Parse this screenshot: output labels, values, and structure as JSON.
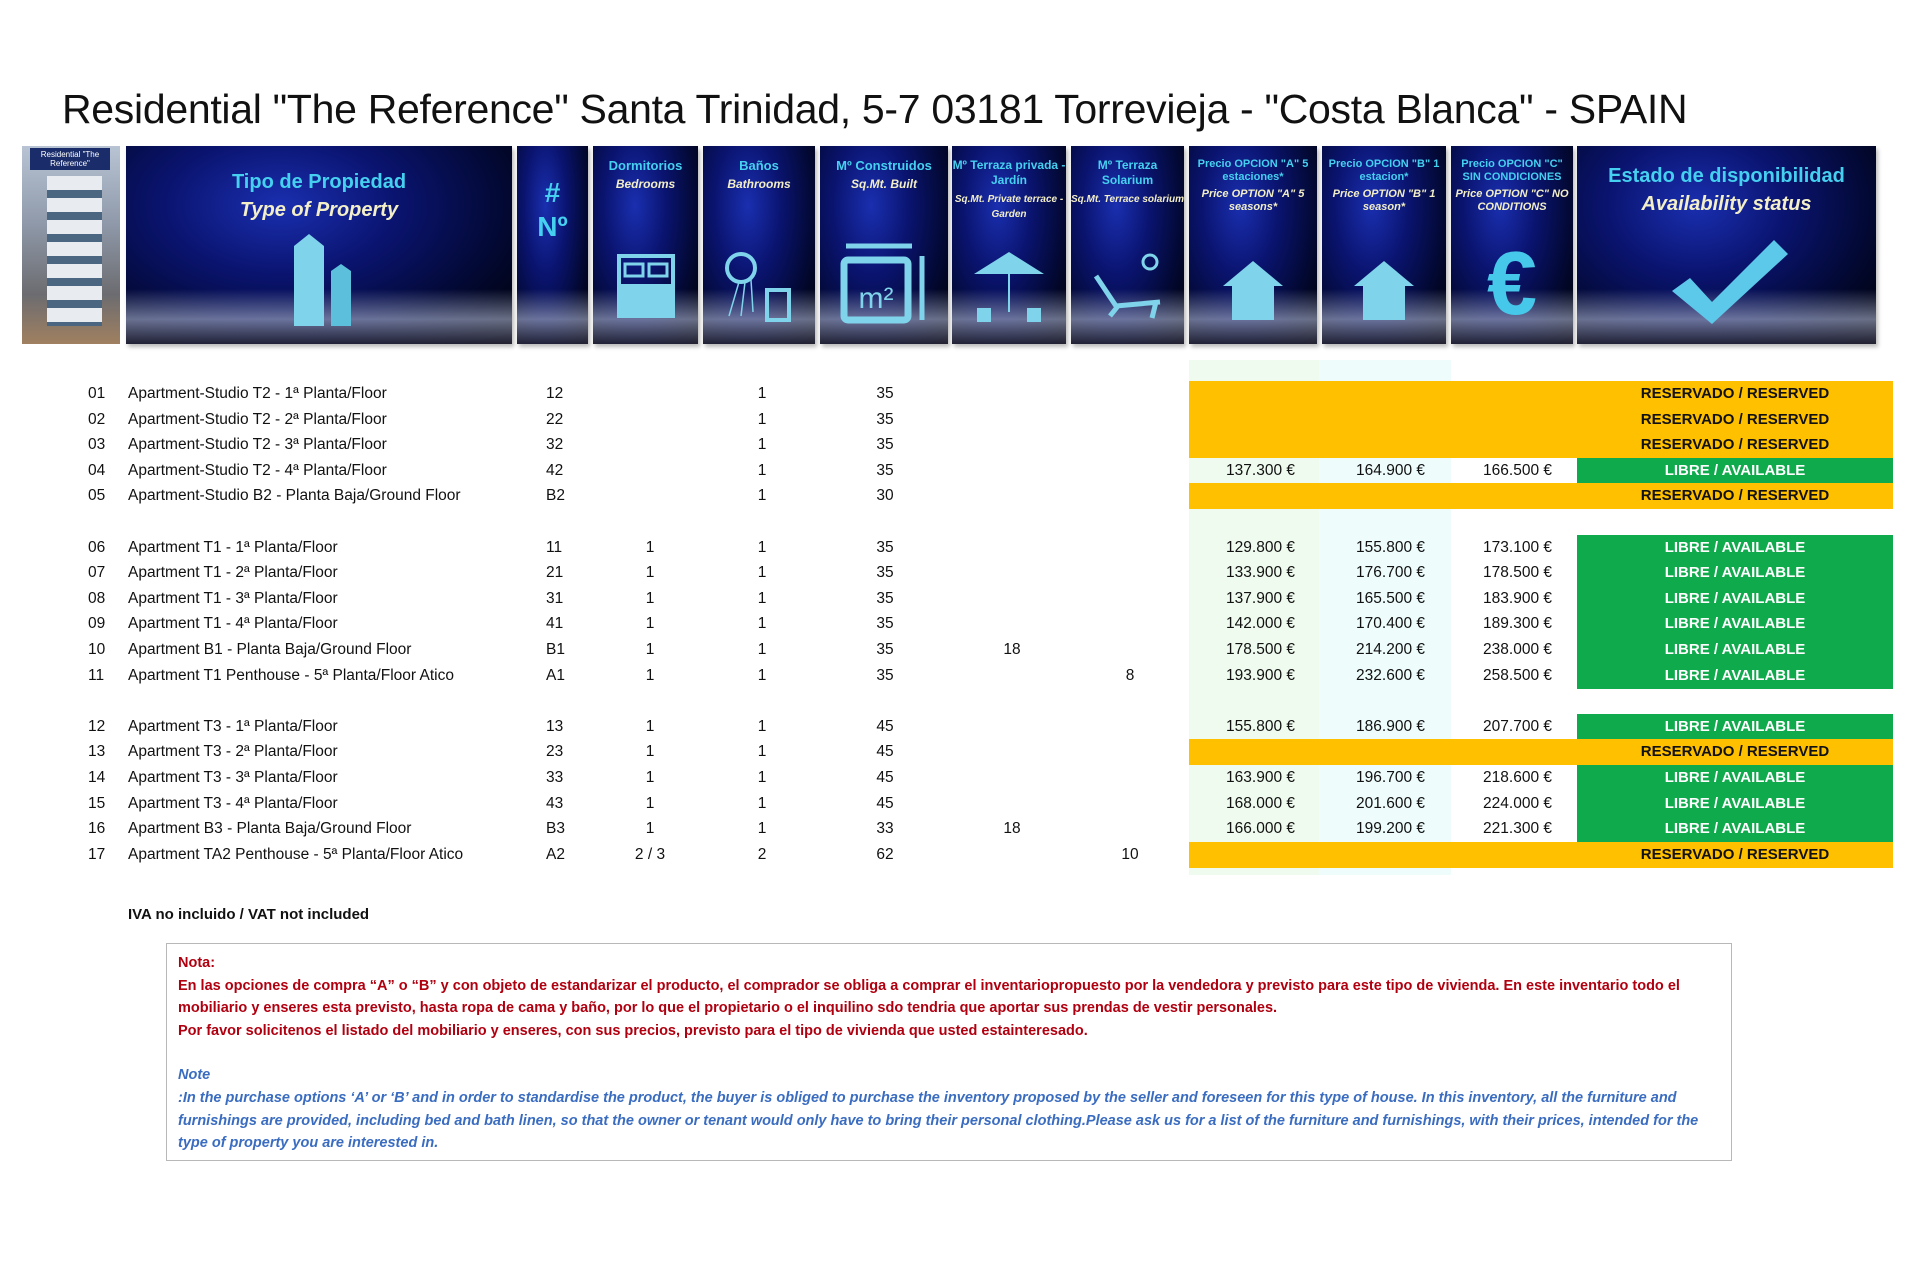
{
  "title": "Residential \"The Reference\" Santa Trinidad, 5-7   03181 Torrevieja - \"Costa Blanca\" - SPAIN",
  "photo_label": "Residential \"The Reference\"",
  "headers": {
    "type": {
      "es": "Tipo de Propiedad",
      "en": "Type of Property",
      "icon": "buildings-icon"
    },
    "number": {
      "es": "#",
      "en": "Nº"
    },
    "bedrooms": {
      "es": "Dormitorios",
      "en": "Bedrooms",
      "icon": "bed-icon"
    },
    "bathrooms": {
      "es": "Baños",
      "en": "Bathrooms",
      "icon": "shower-icon"
    },
    "built": {
      "es": "Mº Construidos",
      "en": "Sq.Mt. Built",
      "icon": "m2-icon"
    },
    "terrace": {
      "es": "Mº Terraza privada - Jardín",
      "en": "Sq.Mt. Private terrace - Garden",
      "icon": "parasol-icon"
    },
    "solarium": {
      "es": "Mº Terraza Solarium",
      "en": "Sq.Mt. Terrace solarium",
      "icon": "sunbed-icon"
    },
    "option_a": {
      "es": "Precio OPCION \"A\" 5 estaciones*",
      "en": "Price OPTION \"A\" 5 seasons*",
      "icon": "house-icon"
    },
    "option_b": {
      "es": "Precio OPCION \"B\" 1 estacion*",
      "en": "Price OPTION \"B\" 1 season*",
      "icon": "house-icon"
    },
    "option_c": {
      "es": "Precio OPCION \"C\" SIN CONDICIONES",
      "en": "Price OPTION \"C\" NO CONDITIONS",
      "icon": "euro-icon"
    },
    "status": {
      "es": "Estado de disponibilidad",
      "en": "Availability status",
      "icon": "checkmark-icon"
    }
  },
  "colors": {
    "reserved": "#ffc000",
    "available": "#0faa4c",
    "note_es": "#b00010",
    "note_en": "#3a6cc0"
  },
  "groups": [
    [
      {
        "num": "01",
        "name": "Apartment-Studio T2 - 1ª Planta/Floor",
        "unit": "12",
        "bed": "",
        "bath": "1",
        "m2": "35",
        "terrace": "",
        "solarium": "",
        "a": "",
        "b": "",
        "c": "",
        "status": "RESERVADO / RESERVED",
        "state": "reserved"
      },
      {
        "num": "02",
        "name": "Apartment-Studio T2 - 2ª Planta/Floor",
        "unit": "22",
        "bed": "",
        "bath": "1",
        "m2": "35",
        "terrace": "",
        "solarium": "",
        "a": "",
        "b": "",
        "c": "",
        "status": "RESERVADO / RESERVED",
        "state": "reserved"
      },
      {
        "num": "03",
        "name": "Apartment-Studio T2 - 3ª Planta/Floor",
        "unit": "32",
        "bed": "",
        "bath": "1",
        "m2": "35",
        "terrace": "",
        "solarium": "",
        "a": "",
        "b": "",
        "c": "",
        "status": "RESERVADO / RESERVED",
        "state": "reserved"
      },
      {
        "num": "04",
        "name": "Apartment-Studio T2 - 4ª Planta/Floor",
        "unit": "42",
        "bed": "",
        "bath": "1",
        "m2": "35",
        "terrace": "",
        "solarium": "",
        "a": "137.300 €",
        "b": "164.900 €",
        "c": "166.500 €",
        "status": "LIBRE / AVAILABLE",
        "state": "available"
      },
      {
        "num": "05",
        "name": "Apartment-Studio B2 - Planta Baja/Ground Floor",
        "unit": "B2",
        "bed": "",
        "bath": "1",
        "m2": "30",
        "terrace": "",
        "solarium": "",
        "a": "",
        "b": "",
        "c": "",
        "status": "RESERVADO / RESERVED",
        "state": "reserved"
      }
    ],
    [
      {
        "num": "06",
        "name": "Apartment T1 - 1ª Planta/Floor",
        "unit": "11",
        "bed": "1",
        "bath": "1",
        "m2": "35",
        "terrace": "",
        "solarium": "",
        "a": "129.800 €",
        "b": "155.800 €",
        "c": "173.100 €",
        "status": "LIBRE / AVAILABLE",
        "state": "available"
      },
      {
        "num": "07",
        "name": "Apartment T1 - 2ª Planta/Floor",
        "unit": "21",
        "bed": "1",
        "bath": "1",
        "m2": "35",
        "terrace": "",
        "solarium": "",
        "a": "133.900 €",
        "b": "176.700 €",
        "c": "178.500 €",
        "status": "LIBRE / AVAILABLE",
        "state": "available"
      },
      {
        "num": "08",
        "name": "Apartment T1 - 3ª Planta/Floor",
        "unit": "31",
        "bed": "1",
        "bath": "1",
        "m2": "35",
        "terrace": "",
        "solarium": "",
        "a": "137.900 €",
        "b": "165.500 €",
        "c": "183.900 €",
        "status": "LIBRE / AVAILABLE",
        "state": "available"
      },
      {
        "num": "09",
        "name": "Apartment T1 - 4ª Planta/Floor",
        "unit": "41",
        "bed": "1",
        "bath": "1",
        "m2": "35",
        "terrace": "",
        "solarium": "",
        "a": "142.000 €",
        "b": "170.400 €",
        "c": "189.300 €",
        "status": "LIBRE / AVAILABLE",
        "state": "available"
      },
      {
        "num": "10",
        "name": "Apartment B1 -  Planta Baja/Ground Floor",
        "unit": "B1",
        "bed": "1",
        "bath": "1",
        "m2": "35",
        "terrace": "18",
        "solarium": "",
        "a": "178.500 €",
        "b": "214.200 €",
        "c": "238.000 €",
        "status": "LIBRE / AVAILABLE",
        "state": "available"
      },
      {
        "num": "11",
        "name": "Apartment T1 Penthouse -  5ª Planta/Floor Atico",
        "unit": "A1",
        "bed": "1",
        "bath": "1",
        "m2": "35",
        "terrace": "",
        "solarium": "8",
        "a": "193.900 €",
        "b": "232.600 €",
        "c": "258.500 €",
        "status": "LIBRE / AVAILABLE",
        "state": "available"
      }
    ],
    [
      {
        "num": "12",
        "name": "Apartment T3 - 1ª Planta/Floor",
        "unit": "13",
        "bed": "1",
        "bath": "1",
        "m2": "45",
        "terrace": "",
        "solarium": "",
        "a": "155.800 €",
        "b": "186.900 €",
        "c": "207.700 €",
        "status": "LIBRE / AVAILABLE",
        "state": "available"
      },
      {
        "num": "13",
        "name": "Apartment T3 - 2ª Planta/Floor",
        "unit": "23",
        "bed": "1",
        "bath": "1",
        "m2": "45",
        "terrace": "",
        "solarium": "",
        "a": "",
        "b": "",
        "c": "",
        "status": "RESERVADO / RESERVED",
        "state": "reserved"
      },
      {
        "num": "14",
        "name": "Apartment T3 - 3ª Planta/Floor",
        "unit": "33",
        "bed": "1",
        "bath": "1",
        "m2": "45",
        "terrace": "",
        "solarium": "",
        "a": "163.900 €",
        "b": "196.700 €",
        "c": "218.600 €",
        "status": "LIBRE / AVAILABLE",
        "state": "available"
      },
      {
        "num": "15",
        "name": "Apartment T3 - 4ª Planta/Floor",
        "unit": "43",
        "bed": "1",
        "bath": "1",
        "m2": "45",
        "terrace": "",
        "solarium": "",
        "a": "168.000 €",
        "b": "201.600 €",
        "c": "224.000 €",
        "status": "LIBRE / AVAILABLE",
        "state": "available"
      },
      {
        "num": "16",
        "name": "Apartment B3 - Planta Baja/Ground Floor",
        "unit": "B3",
        "bed": "1",
        "bath": "1",
        "m2": "33",
        "terrace": "18",
        "solarium": "",
        "a": "166.000 €",
        "b": "199.200 €",
        "c": "221.300 €",
        "status": "LIBRE / AVAILABLE",
        "state": "available"
      },
      {
        "num": "17",
        "name": "Apartment TA2 Penthouse - 5ª Planta/Floor Atico",
        "unit": "A2",
        "bed": "2 / 3",
        "bath": "2",
        "m2": "62",
        "terrace": "",
        "solarium": "10",
        "a": "",
        "b": "",
        "c": "",
        "status": "RESERVADO / RESERVED",
        "state": "reserved"
      }
    ]
  ],
  "vat_note": "IVA no incluido / VAT not included",
  "note": {
    "es_title": "Nota:",
    "es_lines": [
      "En las opciones de compra “A” o “B” y con objeto de estandarizar el producto, el comprador se obliga a comprar el inventariopropuesto por la vendedora y previsto para este tipo de vivienda. En este inventario todo el mobiliario y enseres esta previsto, hasta ropa de cama y baño, por lo que el propietario o el inquilino sdo tendria que aportar sus prendas de vestir personales.",
      "Por favor solicitenos el listado del mobiliario y enseres, con sus precios, previsto para el tipo de vivienda que usted estainteresado."
    ],
    "en_title": "Note",
    "en_text": ":In the purchase options ‘A’ or ‘B’ and in order to standardise the product, the buyer is obliged to purchase the inventory proposed by the seller and foreseen for this type of house. In this inventory, all the furniture and furnishings are provided, including bed and bath linen, so that the owner or tenant would only have to bring their personal clothing.Please ask us for a list of the furniture and furnishings, with their prices, intended for the type of property you are interested in."
  }
}
